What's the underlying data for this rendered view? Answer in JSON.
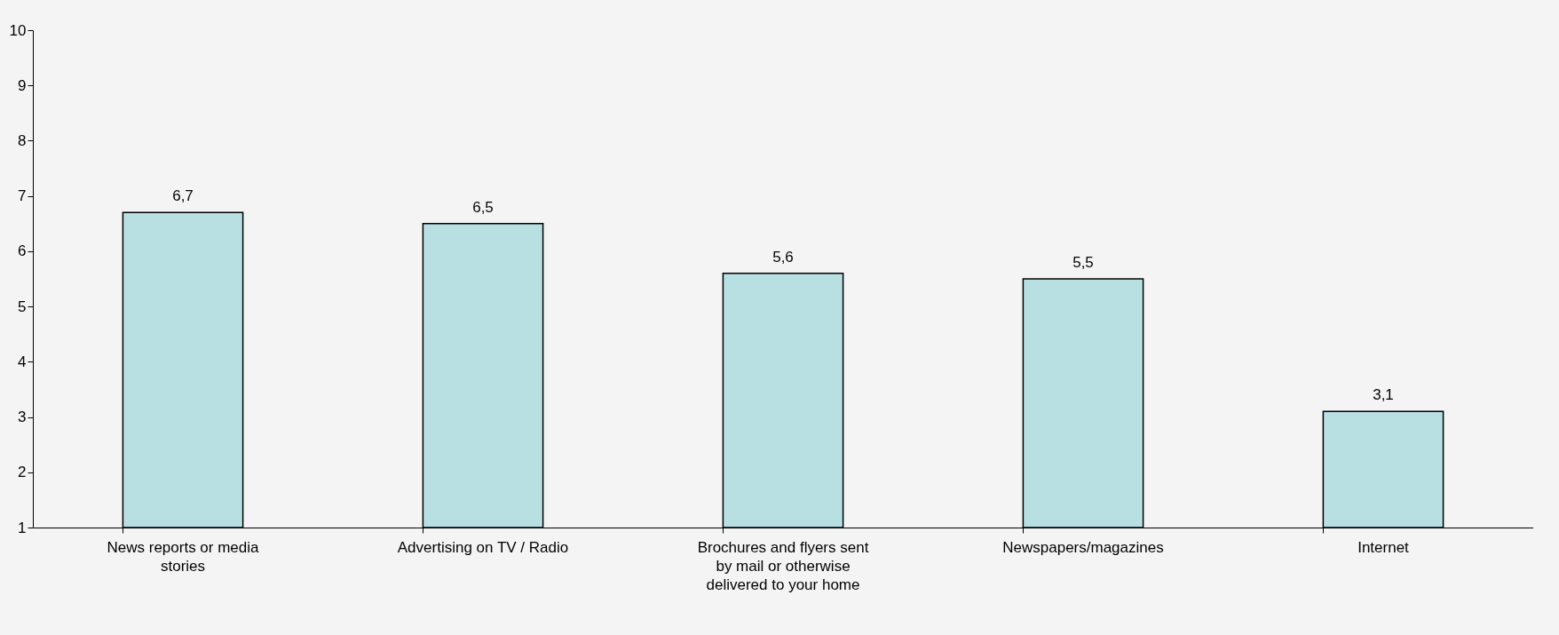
{
  "chart_data": {
    "type": "bar",
    "categories": [
      "News reports or media stories",
      "Advertising on TV / Radio",
      "Brochures and flyers sent by mail or otherwise delivered to your home",
      "Newspapers/magazines",
      "Internet"
    ],
    "values": [
      6.7,
      6.5,
      5.6,
      5.5,
      3.1
    ],
    "value_labels": [
      "6,7",
      "6,5",
      "5,6",
      "5,5",
      "3,1"
    ],
    "color": "#b8e0e3",
    "ylim": [
      1,
      10
    ],
    "yticks": [
      1,
      2,
      3,
      4,
      5,
      6,
      7,
      8,
      9,
      10
    ],
    "grid": false
  }
}
